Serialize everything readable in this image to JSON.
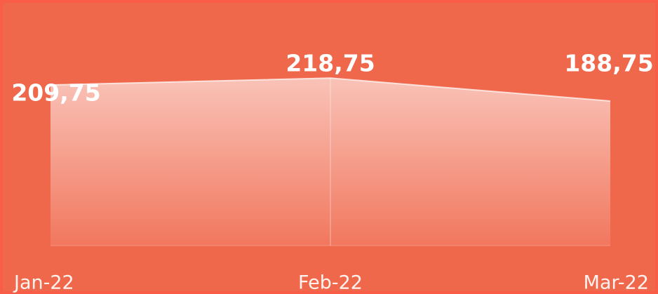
{
  "chart_data": {
    "type": "area",
    "categories": [
      "Jan-22",
      "Feb-22",
      "Mar-22"
    ],
    "values": [
      209.75,
      218.75,
      188.75
    ],
    "value_labels": [
      "209,75",
      "218,75",
      "188,75"
    ],
    "color": "#ffffff",
    "ylim": [
      0,
      230
    ]
  }
}
